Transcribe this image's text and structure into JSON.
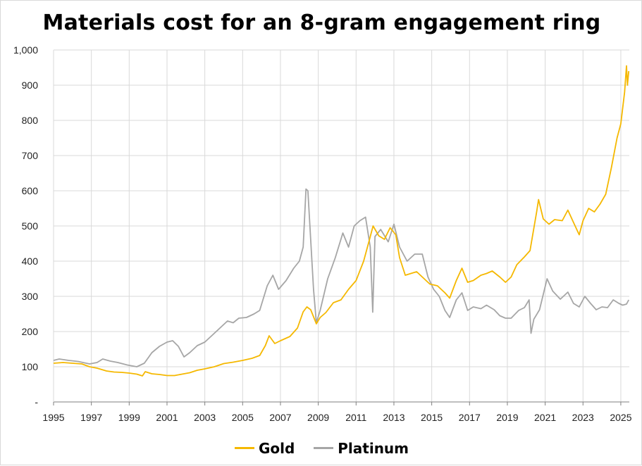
{
  "chart_data": {
    "type": "line",
    "title": "Materials cost for an 8-gram engagement ring",
    "xlabel": "",
    "ylabel": "",
    "xlim": [
      1995,
      2025.45
    ],
    "ylim": [
      0,
      1000
    ],
    "grid": true,
    "legend_position": "bottom-center",
    "x_ticks": [
      1995,
      1997,
      1999,
      2001,
      2003,
      2005,
      2007,
      2009,
      2011,
      2013,
      2015,
      2017,
      2019,
      2021,
      2023,
      2025
    ],
    "x_tick_labels": [
      "1995",
      "1997",
      "1999",
      "2001",
      "2003",
      "2005",
      "2007",
      "2009",
      "2011",
      "2013",
      "2015",
      "2017",
      "2019",
      "2021",
      "2023",
      "2025"
    ],
    "y_ticks": [
      0,
      100,
      200,
      300,
      400,
      500,
      600,
      700,
      800,
      900,
      1000
    ],
    "y_tick_labels": [
      "-",
      "100",
      "200",
      "300",
      "400",
      "500",
      "600",
      "700",
      "800",
      "900",
      "1,000"
    ],
    "series": [
      {
        "name": "Gold",
        "color": "#F5B800",
        "points": [
          [
            1995.0,
            110
          ],
          [
            1995.5,
            112
          ],
          [
            1996.0,
            110
          ],
          [
            1996.5,
            108
          ],
          [
            1996.9,
            100
          ],
          [
            1997.3,
            96
          ],
          [
            1997.8,
            88
          ],
          [
            1998.2,
            85
          ],
          [
            1998.6,
            84
          ],
          [
            1999.0,
            82
          ],
          [
            1999.4,
            79
          ],
          [
            1999.7,
            74
          ],
          [
            1999.85,
            86
          ],
          [
            2000.2,
            80
          ],
          [
            2000.6,
            78
          ],
          [
            2001.0,
            75
          ],
          [
            2001.4,
            75
          ],
          [
            2001.8,
            79
          ],
          [
            2002.2,
            83
          ],
          [
            2002.6,
            90
          ],
          [
            2003.0,
            94
          ],
          [
            2003.5,
            100
          ],
          [
            2004.0,
            109
          ],
          [
            2004.5,
            113
          ],
          [
            2005.0,
            118
          ],
          [
            2005.5,
            124
          ],
          [
            2005.9,
            132
          ],
          [
            2006.2,
            160
          ],
          [
            2006.4,
            188
          ],
          [
            2006.7,
            166
          ],
          [
            2007.0,
            174
          ],
          [
            2007.5,
            186
          ],
          [
            2007.9,
            210
          ],
          [
            2008.2,
            256
          ],
          [
            2008.4,
            270
          ],
          [
            2008.6,
            262
          ],
          [
            2008.9,
            222
          ],
          [
            2009.1,
            240
          ],
          [
            2009.4,
            254
          ],
          [
            2009.8,
            282
          ],
          [
            2010.2,
            290
          ],
          [
            2010.6,
            320
          ],
          [
            2011.0,
            345
          ],
          [
            2011.4,
            400
          ],
          [
            2011.7,
            460
          ],
          [
            2011.9,
            500
          ],
          [
            2012.2,
            472
          ],
          [
            2012.5,
            462
          ],
          [
            2012.8,
            495
          ],
          [
            2013.1,
            475
          ],
          [
            2013.3,
            410
          ],
          [
            2013.6,
            360
          ],
          [
            2013.9,
            365
          ],
          [
            2014.2,
            370
          ],
          [
            2014.6,
            350
          ],
          [
            2014.9,
            335
          ],
          [
            2015.3,
            330
          ],
          [
            2015.7,
            310
          ],
          [
            2015.95,
            295
          ],
          [
            2016.3,
            345
          ],
          [
            2016.6,
            380
          ],
          [
            2016.9,
            340
          ],
          [
            2017.2,
            345
          ],
          [
            2017.6,
            360
          ],
          [
            2017.9,
            365
          ],
          [
            2018.2,
            372
          ],
          [
            2018.6,
            355
          ],
          [
            2018.9,
            340
          ],
          [
            2019.2,
            355
          ],
          [
            2019.5,
            390
          ],
          [
            2019.9,
            412
          ],
          [
            2020.2,
            430
          ],
          [
            2020.55,
            540
          ],
          [
            2020.65,
            575
          ],
          [
            2020.9,
            520
          ],
          [
            2021.2,
            505
          ],
          [
            2021.5,
            518
          ],
          [
            2021.9,
            515
          ],
          [
            2022.2,
            545
          ],
          [
            2022.5,
            510
          ],
          [
            2022.8,
            475
          ],
          [
            2023.0,
            515
          ],
          [
            2023.3,
            550
          ],
          [
            2023.6,
            540
          ],
          [
            2023.9,
            562
          ],
          [
            2024.2,
            590
          ],
          [
            2024.5,
            665
          ],
          [
            2024.8,
            750
          ],
          [
            2025.0,
            790
          ],
          [
            2025.2,
            880
          ],
          [
            2025.3,
            955
          ],
          [
            2025.35,
            900
          ],
          [
            2025.42,
            940
          ]
        ]
      },
      {
        "name": "Platinum",
        "color": "#A6A6A6",
        "points": [
          [
            1995.0,
            118
          ],
          [
            1995.3,
            122
          ],
          [
            1995.8,
            118
          ],
          [
            1996.3,
            115
          ],
          [
            1996.9,
            108
          ],
          [
            1997.3,
            112
          ],
          [
            1997.6,
            122
          ],
          [
            1998.0,
            116
          ],
          [
            1998.4,
            112
          ],
          [
            1998.9,
            105
          ],
          [
            1999.4,
            100
          ],
          [
            1999.8,
            110
          ],
          [
            2000.2,
            140
          ],
          [
            2000.6,
            158
          ],
          [
            2001.0,
            170
          ],
          [
            2001.3,
            174
          ],
          [
            2001.6,
            158
          ],
          [
            2001.9,
            128
          ],
          [
            2002.2,
            140
          ],
          [
            2002.6,
            160
          ],
          [
            2003.0,
            170
          ],
          [
            2003.4,
            190
          ],
          [
            2003.8,
            210
          ],
          [
            2004.2,
            230
          ],
          [
            2004.5,
            225
          ],
          [
            2004.8,
            238
          ],
          [
            2005.2,
            240
          ],
          [
            2005.6,
            250
          ],
          [
            2005.9,
            260
          ],
          [
            2006.3,
            330
          ],
          [
            2006.6,
            360
          ],
          [
            2006.9,
            320
          ],
          [
            2007.3,
            345
          ],
          [
            2007.7,
            380
          ],
          [
            2008.0,
            400
          ],
          [
            2008.2,
            440
          ],
          [
            2008.35,
            605
          ],
          [
            2008.45,
            600
          ],
          [
            2008.6,
            460
          ],
          [
            2008.75,
            320
          ],
          [
            2008.9,
            225
          ],
          [
            2009.1,
            260
          ],
          [
            2009.5,
            350
          ],
          [
            2009.9,
            410
          ],
          [
            2010.3,
            480
          ],
          [
            2010.6,
            440
          ],
          [
            2010.9,
            500
          ],
          [
            2011.2,
            515
          ],
          [
            2011.5,
            525
          ],
          [
            2011.75,
            440
          ],
          [
            2011.88,
            255
          ],
          [
            2012.0,
            470
          ],
          [
            2012.3,
            490
          ],
          [
            2012.7,
            455
          ],
          [
            2013.0,
            505
          ],
          [
            2013.3,
            440
          ],
          [
            2013.7,
            400
          ],
          [
            2014.1,
            420
          ],
          [
            2014.5,
            420
          ],
          [
            2014.8,
            355
          ],
          [
            2015.1,
            320
          ],
          [
            2015.4,
            300
          ],
          [
            2015.7,
            260
          ],
          [
            2015.95,
            240
          ],
          [
            2016.3,
            290
          ],
          [
            2016.6,
            310
          ],
          [
            2016.9,
            260
          ],
          [
            2017.2,
            270
          ],
          [
            2017.6,
            265
          ],
          [
            2017.9,
            275
          ],
          [
            2018.3,
            262
          ],
          [
            2018.6,
            245
          ],
          [
            2018.9,
            238
          ],
          [
            2019.2,
            238
          ],
          [
            2019.6,
            260
          ],
          [
            2019.9,
            268
          ],
          [
            2020.15,
            290
          ],
          [
            2020.25,
            195
          ],
          [
            2020.4,
            235
          ],
          [
            2020.7,
            262
          ],
          [
            2021.1,
            350
          ],
          [
            2021.4,
            315
          ],
          [
            2021.8,
            292
          ],
          [
            2022.2,
            312
          ],
          [
            2022.5,
            280
          ],
          [
            2022.8,
            270
          ],
          [
            2023.1,
            300
          ],
          [
            2023.4,
            280
          ],
          [
            2023.7,
            262
          ],
          [
            2024.0,
            270
          ],
          [
            2024.3,
            268
          ],
          [
            2024.6,
            290
          ],
          [
            2024.9,
            280
          ],
          [
            2025.1,
            275
          ],
          [
            2025.3,
            278
          ],
          [
            2025.42,
            290
          ]
        ]
      }
    ]
  }
}
